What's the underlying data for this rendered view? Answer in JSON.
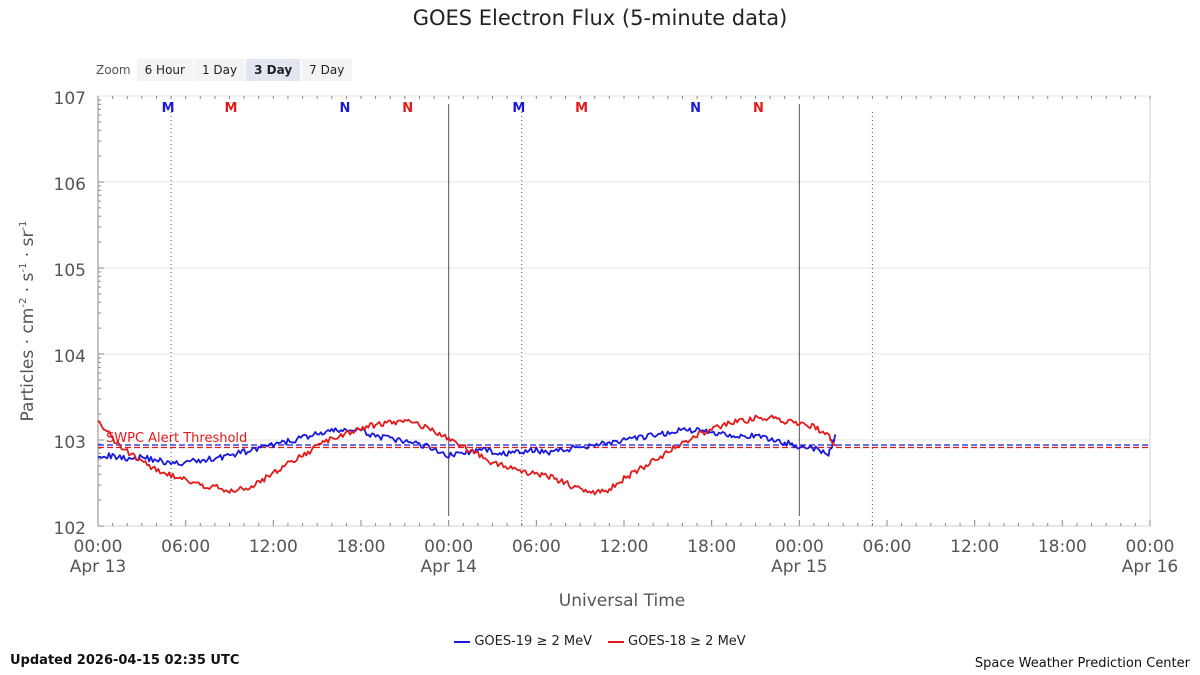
{
  "title": "GOES Electron Flux (5-minute data)",
  "zoom": {
    "label": "Zoom",
    "buttons": [
      "6 Hour",
      "1 Day",
      "3 Day",
      "7 Day"
    ],
    "active": "3 Day"
  },
  "footer": {
    "updated": "Updated 2026-04-15 02:35 UTC",
    "credit": "Space Weather Prediction Center"
  },
  "colors": {
    "goes19": "#1a1adc",
    "goes18": "#e41a1a",
    "grid": "#e6e6e6",
    "axis": "#888888"
  },
  "chart_data": {
    "type": "line",
    "title": "GOES Electron Flux (5-minute data)",
    "xlabel": "Universal Time",
    "ylabel_parts": [
      "Particles · cm",
      "-2",
      " · s",
      "-1",
      " · sr",
      "-1"
    ],
    "x_unit": "hours since Apr 13 00:00 UTC",
    "xlim": [
      0,
      72
    ],
    "ylim_exponent": [
      2,
      7
    ],
    "yscale": "log",
    "y_ticks": [
      {
        "base": "10",
        "exp": "2",
        "value": 2
      },
      {
        "base": "10",
        "exp": "3",
        "value": 3
      },
      {
        "base": "10",
        "exp": "4",
        "value": 4
      },
      {
        "base": "10",
        "exp": "5",
        "value": 5
      },
      {
        "base": "10",
        "exp": "6",
        "value": 6
      },
      {
        "base": "10",
        "exp": "7",
        "value": 7
      }
    ],
    "x_ticks": [
      {
        "x": 0,
        "time": "00:00",
        "date": "Apr 13"
      },
      {
        "x": 6,
        "time": "06:00",
        "date": ""
      },
      {
        "x": 12,
        "time": "12:00",
        "date": ""
      },
      {
        "x": 18,
        "time": "18:00",
        "date": ""
      },
      {
        "x": 24,
        "time": "00:00",
        "date": "Apr 14"
      },
      {
        "x": 30,
        "time": "06:00",
        "date": ""
      },
      {
        "x": 36,
        "time": "12:00",
        "date": ""
      },
      {
        "x": 42,
        "time": "18:00",
        "date": ""
      },
      {
        "x": 48,
        "time": "00:00",
        "date": "Apr 15"
      },
      {
        "x": 54,
        "time": "06:00",
        "date": ""
      },
      {
        "x": 60,
        "time": "12:00",
        "date": ""
      },
      {
        "x": 66,
        "time": "18:00",
        "date": ""
      },
      {
        "x": 72,
        "time": "00:00",
        "date": "Apr 16"
      }
    ],
    "day_boundaries": [
      24,
      48
    ],
    "midnight_lines": [
      5,
      29,
      53
    ],
    "markers": [
      {
        "x": 4.8,
        "label": "M",
        "series": "GOES-19"
      },
      {
        "x": 9.1,
        "label": "M",
        "series": "GOES-18"
      },
      {
        "x": 16.9,
        "label": "N",
        "series": "GOES-19"
      },
      {
        "x": 21.2,
        "label": "N",
        "series": "GOES-18"
      },
      {
        "x": 28.8,
        "label": "M",
        "series": "GOES-19"
      },
      {
        "x": 33.1,
        "label": "M",
        "series": "GOES-18"
      },
      {
        "x": 40.9,
        "label": "N",
        "series": "GOES-19"
      },
      {
        "x": 45.2,
        "label": "N",
        "series": "GOES-18"
      }
    ],
    "threshold": {
      "label": "SWPC Alert Threshold",
      "value_exponent": 2.93
    },
    "series": [
      {
        "name": "GOES-19 ≥ 2 MeV",
        "color_key": "goes19",
        "x": [
          0,
          1,
          2,
          3,
          4,
          5,
          6,
          7,
          8,
          9,
          10,
          11,
          12,
          13,
          14,
          15,
          16,
          17,
          18,
          19,
          20,
          21,
          22,
          23,
          24,
          25,
          26,
          27,
          28,
          29,
          30,
          31,
          32,
          33,
          34,
          35,
          36,
          37,
          38,
          39,
          40,
          41,
          42,
          43,
          44,
          45,
          46,
          47,
          48,
          49,
          50,
          50.5
        ],
        "y": [
          2.83,
          2.81,
          2.79,
          2.8,
          2.77,
          2.72,
          2.74,
          2.76,
          2.79,
          2.82,
          2.86,
          2.9,
          2.94,
          2.98,
          3.03,
          3.07,
          3.1,
          3.12,
          3.1,
          3.05,
          3.01,
          2.98,
          2.95,
          2.9,
          2.82,
          2.85,
          2.88,
          2.87,
          2.84,
          2.86,
          2.88,
          2.86,
          2.89,
          2.92,
          2.95,
          2.97,
          2.99,
          3.02,
          3.05,
          3.08,
          3.12,
          3.11,
          3.09,
          3.07,
          3.05,
          3.04,
          3.01,
          2.97,
          2.93,
          2.9,
          2.83,
          3.06
        ]
      },
      {
        "name": "GOES-18 ≥ 2 MeV",
        "color_key": "goes18",
        "x": [
          0,
          1,
          2,
          3,
          4,
          5,
          6,
          7,
          8,
          9,
          10,
          11,
          12,
          13,
          14,
          15,
          16,
          17,
          18,
          19,
          20,
          21,
          22,
          23,
          24,
          25,
          26,
          27,
          28,
          29,
          30,
          31,
          32,
          33,
          34,
          35,
          36,
          37,
          38,
          39,
          40,
          41,
          42,
          43,
          44,
          45,
          46,
          47,
          48,
          49,
          50,
          50.5
        ],
        "y": [
          3.21,
          3.02,
          2.86,
          2.74,
          2.65,
          2.58,
          2.53,
          2.48,
          2.45,
          2.42,
          2.43,
          2.5,
          2.62,
          2.73,
          2.82,
          2.92,
          3.01,
          3.08,
          3.13,
          3.18,
          3.21,
          3.22,
          3.18,
          3.11,
          3.02,
          2.92,
          2.83,
          2.74,
          2.69,
          2.64,
          2.61,
          2.57,
          2.5,
          2.42,
          2.38,
          2.42,
          2.55,
          2.66,
          2.75,
          2.86,
          2.97,
          3.06,
          3.12,
          3.18,
          3.22,
          3.25,
          3.26,
          3.22,
          3.19,
          3.16,
          3.05,
          2.93
        ]
      }
    ]
  }
}
